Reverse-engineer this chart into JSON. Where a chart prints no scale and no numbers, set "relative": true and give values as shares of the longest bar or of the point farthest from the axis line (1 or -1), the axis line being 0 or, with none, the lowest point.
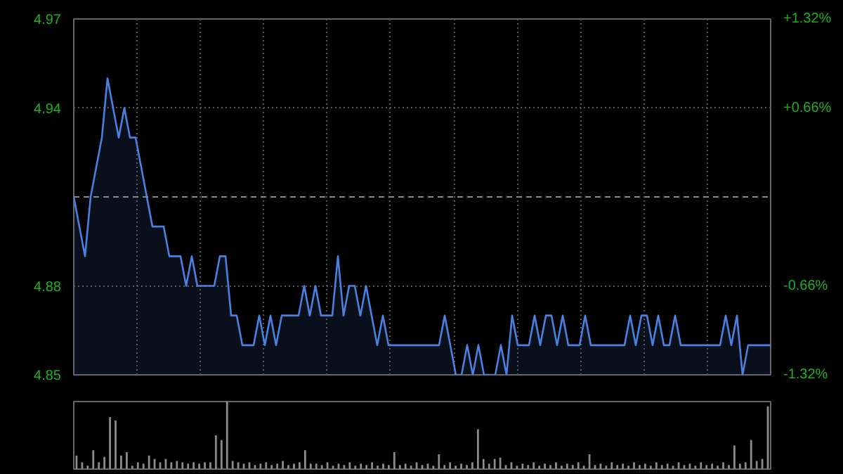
{
  "chart_data": [
    {
      "type": "area",
      "categories": [
        null,
        null,
        null,
        null,
        null,
        null,
        null,
        null,
        null,
        null,
        null,
        null,
        null,
        null,
        null,
        null,
        null,
        null,
        null,
        null,
        null,
        null,
        null,
        null,
        null,
        null,
        null,
        null,
        null,
        null,
        null,
        null,
        null,
        null,
        null,
        null,
        null,
        null,
        null,
        null,
        null,
        null,
        null,
        null,
        null,
        null,
        null,
        null,
        null,
        null,
        null,
        null,
        null,
        null,
        null,
        null,
        null,
        null,
        null,
        null,
        null,
        null,
        null,
        null,
        null,
        null,
        null,
        null,
        null,
        null,
        null,
        null,
        null,
        null,
        null,
        null,
        null,
        null,
        null,
        null,
        null,
        null,
        null,
        null,
        null,
        null,
        null,
        null,
        null,
        null,
        null,
        null,
        null,
        null,
        null,
        null,
        null,
        null,
        null,
        null,
        null,
        null,
        null,
        null,
        null,
        null,
        null,
        null,
        null,
        null,
        null,
        null,
        null,
        null,
        null,
        null,
        null,
        null,
        null,
        null,
        null,
        null,
        null,
        null,
        null
      ],
      "series": [
        {
          "color": "#4a80e0",
          "values": [
            4.91,
            4.9,
            4.89,
            4.91,
            4.92,
            4.93,
            4.95,
            4.94,
            4.93,
            4.94,
            4.93,
            4.93,
            4.92,
            4.91,
            4.9,
            4.9,
            4.9,
            4.89,
            4.89,
            4.89,
            4.88,
            4.89,
            4.88,
            4.88,
            4.88,
            4.88,
            4.89,
            4.89,
            4.87,
            4.87,
            4.86,
            4.86,
            4.86,
            4.87,
            4.86,
            4.87,
            4.86,
            4.87,
            4.87,
            4.87,
            4.87,
            4.88,
            4.87,
            4.88,
            4.87,
            4.87,
            4.87,
            4.89,
            4.87,
            4.88,
            4.88,
            4.87,
            4.88,
            4.87,
            4.86,
            4.87,
            4.86,
            4.86,
            4.86,
            4.86,
            4.86,
            4.86,
            4.86,
            4.86,
            4.86,
            4.86,
            4.87,
            4.86,
            4.85,
            4.85,
            4.86,
            4.85,
            4.86,
            4.85,
            4.85,
            4.85,
            4.86,
            4.85,
            4.87,
            4.86,
            4.86,
            4.86,
            4.87,
            4.86,
            4.87,
            4.87,
            4.86,
            4.87,
            4.86,
            4.86,
            4.86,
            4.87,
            4.86,
            4.86,
            4.86,
            4.86,
            4.86,
            4.86,
            4.86,
            4.87,
            4.86,
            4.87,
            4.87,
            4.86,
            4.87,
            4.86,
            4.86,
            4.87,
            4.86,
            4.86,
            4.86,
            4.86,
            4.86,
            4.86,
            4.86,
            4.86,
            4.87,
            4.86,
            4.87,
            4.85,
            4.86,
            4.86,
            4.86,
            4.86,
            4.86
          ]
        }
      ],
      "ylim": [
        4.85,
        4.97
      ],
      "yticks": [
        4.97,
        4.94,
        4.88,
        4.85
      ],
      "y2lim": [
        -1.32,
        1.32
      ],
      "y2ticks": [
        {
          "value": 1.32,
          "label": "+1.32%"
        },
        {
          "value": 0.66,
          "label": "+0.66%"
        },
        {
          "value": -0.66,
          "label": "-0.66%"
        },
        {
          "value": -1.32,
          "label": "-1.32%"
        }
      ],
      "ref_lines": [
        {
          "axis": "y",
          "value": 4.91,
          "color": "#888888",
          "line_style": "dashed"
        }
      ],
      "grid": true,
      "tick_labels": "y"
    },
    {
      "type": "bar",
      "relative": true,
      "color": "#8c8c8c",
      "categories": [
        null,
        null,
        null,
        null,
        null,
        null,
        null,
        null,
        null,
        null,
        null,
        null,
        null,
        null,
        null,
        null,
        null,
        null,
        null,
        null,
        null,
        null,
        null,
        null,
        null,
        null,
        null,
        null,
        null,
        null,
        null,
        null,
        null,
        null,
        null,
        null,
        null,
        null,
        null,
        null,
        null,
        null,
        null,
        null,
        null,
        null,
        null,
        null,
        null,
        null,
        null,
        null,
        null,
        null,
        null,
        null,
        null,
        null,
        null,
        null,
        null,
        null,
        null,
        null,
        null,
        null,
        null,
        null,
        null,
        null,
        null,
        null,
        null,
        null,
        null,
        null,
        null,
        null,
        null,
        null,
        null,
        null,
        null,
        null,
        null,
        null,
        null,
        null,
        null,
        null,
        null,
        null,
        null,
        null,
        null,
        null,
        null,
        null,
        null,
        null,
        null,
        null,
        null,
        null,
        null,
        null,
        null,
        null,
        null,
        null,
        null,
        null,
        null,
        null,
        null,
        null,
        null,
        null,
        null,
        null,
        null,
        null,
        null,
        null,
        null
      ],
      "values": [
        0.2,
        0.1,
        0.05,
        0.28,
        0.1,
        0.18,
        0.77,
        0.72,
        0.2,
        0.25,
        0.05,
        0.1,
        0.08,
        0.2,
        0.15,
        0.1,
        0.15,
        0.1,
        0.12,
        0.1,
        0.08,
        0.1,
        0.08,
        0.1,
        0.1,
        0.5,
        0.43,
        1.0,
        0.12,
        0.1,
        0.08,
        0.1,
        0.06,
        0.08,
        0.1,
        0.06,
        0.08,
        0.12,
        0.06,
        0.08,
        0.1,
        0.28,
        0.08,
        0.08,
        0.06,
        0.1,
        0.05,
        0.08,
        0.06,
        0.1,
        0.05,
        0.08,
        0.06,
        0.1,
        0.05,
        0.08,
        0.06,
        0.25,
        0.06,
        0.08,
        0.05,
        0.1,
        0.06,
        0.08,
        0.05,
        0.22,
        0.06,
        0.1,
        0.05,
        0.08,
        0.06,
        0.1,
        0.59,
        0.15,
        0.08,
        0.15,
        0.17,
        0.06,
        0.1,
        0.05,
        0.08,
        0.06,
        0.1,
        0.05,
        0.08,
        0.06,
        0.1,
        0.05,
        0.08,
        0.06,
        0.1,
        0.05,
        0.22,
        0.06,
        0.08,
        0.05,
        0.1,
        0.06,
        0.08,
        0.05,
        0.1,
        0.06,
        0.08,
        0.05,
        0.1,
        0.06,
        0.08,
        0.05,
        0.1,
        0.06,
        0.08,
        0.05,
        0.1,
        0.06,
        0.08,
        0.05,
        0.1,
        0.06,
        0.35,
        0.08,
        0.1,
        0.43,
        0.12,
        0.15,
        0.93
      ],
      "grid": false,
      "tick_labels": false
    }
  ]
}
